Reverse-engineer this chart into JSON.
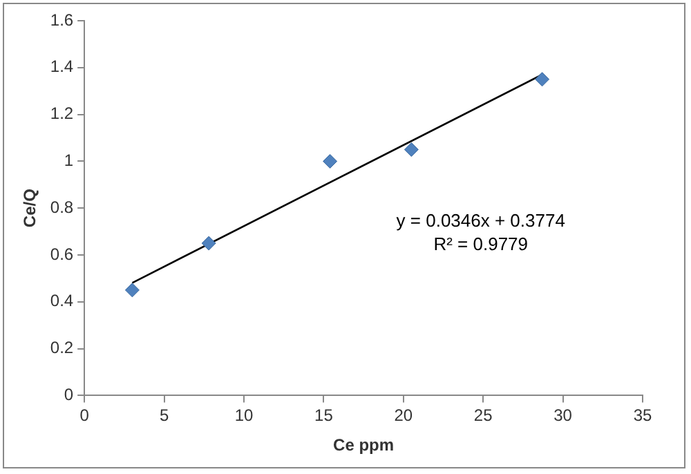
{
  "chart_data": {
    "type": "scatter",
    "xlabel": "Ce ppm",
    "ylabel": "Ce/Q",
    "xlim": [
      0,
      35
    ],
    "xticks": [
      0,
      5,
      10,
      15,
      20,
      25,
      30,
      35
    ],
    "ylim": [
      0,
      1.6
    ],
    "yticks": [
      0,
      {
        "value": 0.2,
        "label": "0.2"
      },
      {
        "value": 0.4,
        "label": "0.4"
      },
      {
        "value": 0.6,
        "label": "0.6"
      },
      {
        "value": 0.8,
        "label": "0.8"
      },
      1,
      {
        "value": 1.2,
        "label": "1.2"
      },
      {
        "value": 1.4,
        "label": "1.4"
      },
      {
        "value": 1.6,
        "label": "1.6"
      }
    ],
    "grid": false,
    "legend": false,
    "marker": "diamond",
    "series": [
      {
        "type": "scatter",
        "color": "#4f81bd",
        "x": [
          3,
          7.8,
          15.4,
          20.5,
          28.7
        ],
        "values": [
          0.45,
          0.65,
          1.0,
          1.05,
          1.35
        ]
      },
      {
        "type": "line",
        "color": "#000000",
        "marker": "none",
        "line_style": "solid",
        "x": [
          3,
          28.7
        ],
        "values": [
          0.481,
          1.37
        ]
      }
    ],
    "annotations": [
      "y = 0.0346x + 0.3774",
      "R² = 0.9779"
    ]
  }
}
